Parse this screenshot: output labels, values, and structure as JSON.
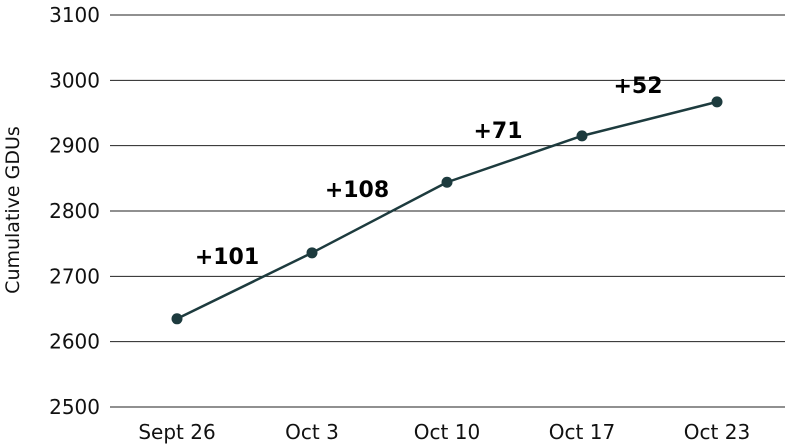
{
  "chart_data": {
    "type": "line",
    "title": "",
    "xlabel": "",
    "ylabel": "Cumulative GDUs",
    "categories": [
      "Sept 26",
      "Oct 3",
      "Oct 10",
      "Oct 17",
      "Oct 23"
    ],
    "series": [
      {
        "values": [
          2635,
          2736,
          2844,
          2915,
          2967
        ]
      }
    ],
    "ylim": [
      2500,
      3100
    ],
    "yticks": [
      "2500",
      "2600",
      "2700",
      "2800",
      "2900",
      "3000",
      "3100"
    ],
    "grid": true,
    "legend": "none",
    "annotations": [
      "+101",
      "+108",
      "+71",
      "+52"
    ],
    "colors": {
      "line": "#1d3b3e",
      "grid": "#222222",
      "text": "#111111"
    }
  }
}
